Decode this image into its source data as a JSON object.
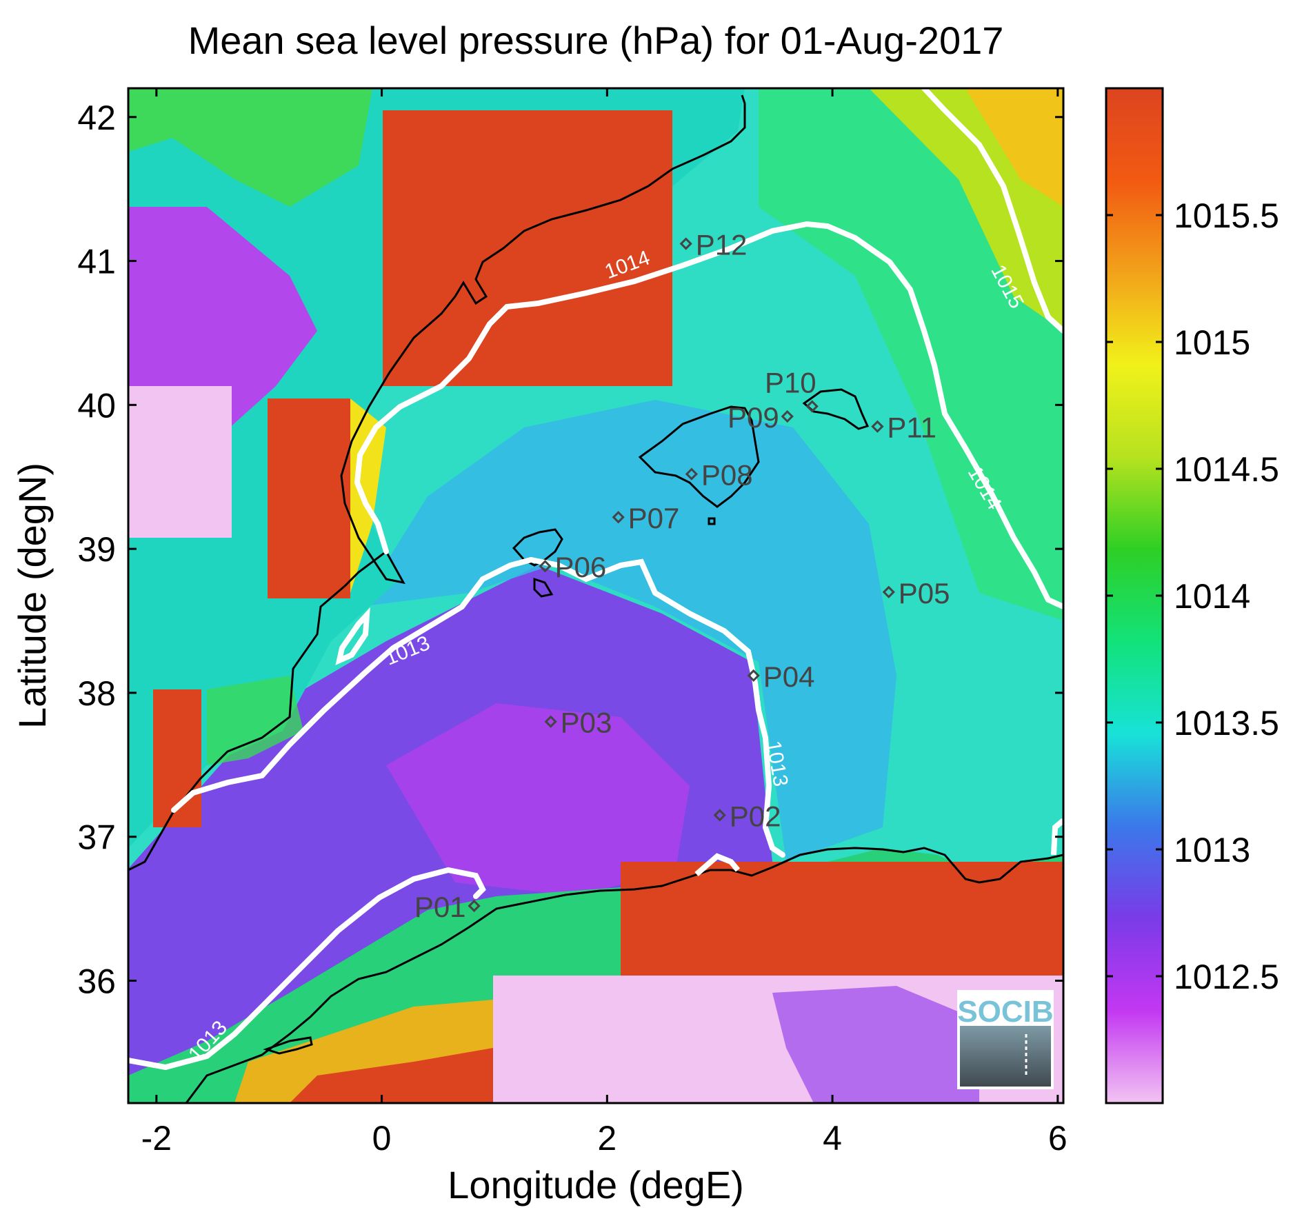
{
  "title": "Mean sea level pressure (hPa) for 01-Aug-2017",
  "xlabel": "Longitude (degE)",
  "ylabel": "Latitude (degN)",
  "logo_text": "SOCIB",
  "map": {
    "lon_range": [
      -2.25,
      6.05
    ],
    "lat_range": [
      35.15,
      42.2
    ],
    "x_ticks": [
      {
        "value": -2,
        "label": "-2"
      },
      {
        "value": 0,
        "label": "0"
      },
      {
        "value": 2,
        "label": "2"
      },
      {
        "value": 4,
        "label": "4"
      },
      {
        "value": 6,
        "label": "6"
      }
    ],
    "y_ticks": [
      {
        "value": 36,
        "label": "36"
      },
      {
        "value": 37,
        "label": "37"
      },
      {
        "value": 38,
        "label": "38"
      },
      {
        "value": 39,
        "label": "39"
      },
      {
        "value": 40,
        "label": "40"
      },
      {
        "value": 41,
        "label": "41"
      },
      {
        "value": 42,
        "label": "42"
      }
    ]
  },
  "colorbar": {
    "range": [
      1012.0,
      1016.0
    ],
    "ticks": [
      {
        "value": 1012.5,
        "label": "1012.5"
      },
      {
        "value": 1013,
        "label": "1013"
      },
      {
        "value": 1013.5,
        "label": "1013.5"
      },
      {
        "value": 1014,
        "label": "1014"
      },
      {
        "value": 1014.5,
        "label": "1014.5"
      },
      {
        "value": 1015,
        "label": "1015"
      },
      {
        "value": 1015.5,
        "label": "1015.5"
      }
    ],
    "colors": [
      "#f2c4f2",
      "#c338f2",
      "#7a3be8",
      "#3b78ea",
      "#18e2d8",
      "#12e27a",
      "#2ecf25",
      "#b6e21f",
      "#f1f11a",
      "#f2a21a",
      "#f25a12",
      "#dc4420"
    ]
  },
  "stations": [
    {
      "label": "P01",
      "lon": 0.82,
      "lat": 36.52,
      "anchor": "end"
    },
    {
      "label": "P02",
      "lon": 3.0,
      "lat": 37.15,
      "anchor": "start"
    },
    {
      "label": "P03",
      "lon": 1.5,
      "lat": 37.8,
      "anchor": "start"
    },
    {
      "label": "P04",
      "lon": 3.3,
      "lat": 38.12,
      "anchor": "start"
    },
    {
      "label": "P05",
      "lon": 4.5,
      "lat": 38.7,
      "anchor": "start"
    },
    {
      "label": "P06",
      "lon": 1.45,
      "lat": 38.88,
      "anchor": "start"
    },
    {
      "label": "P07",
      "lon": 2.1,
      "lat": 39.22,
      "anchor": "start"
    },
    {
      "label": "P08",
      "lon": 2.75,
      "lat": 39.52,
      "anchor": "start"
    },
    {
      "label": "P09",
      "lon": 3.6,
      "lat": 39.92,
      "anchor": "end"
    },
    {
      "label": "P10",
      "lon": 3.82,
      "lat": 39.99,
      "anchor": "end-above"
    },
    {
      "label": "P11",
      "lon": 4.4,
      "lat": 39.85,
      "anchor": "start"
    },
    {
      "label": "P12",
      "lon": 2.7,
      "lat": 41.12,
      "anchor": "start"
    }
  ],
  "contour_labels": [
    {
      "text": "1013",
      "lon": 0.25,
      "lat": 38.25,
      "angle": -22
    },
    {
      "text": "1013",
      "lon": 3.45,
      "lat": 37.5,
      "angle": 80
    },
    {
      "text": "1013",
      "lon": -1.5,
      "lat": 35.55,
      "angle": -48
    },
    {
      "text": "1014",
      "lon": 2.2,
      "lat": 40.93,
      "angle": -20
    },
    {
      "text": "1014",
      "lon": 5.3,
      "lat": 39.4,
      "angle": 60
    },
    {
      "text": "1015",
      "lon": 5.5,
      "lat": 40.8,
      "angle": 62
    }
  ]
}
